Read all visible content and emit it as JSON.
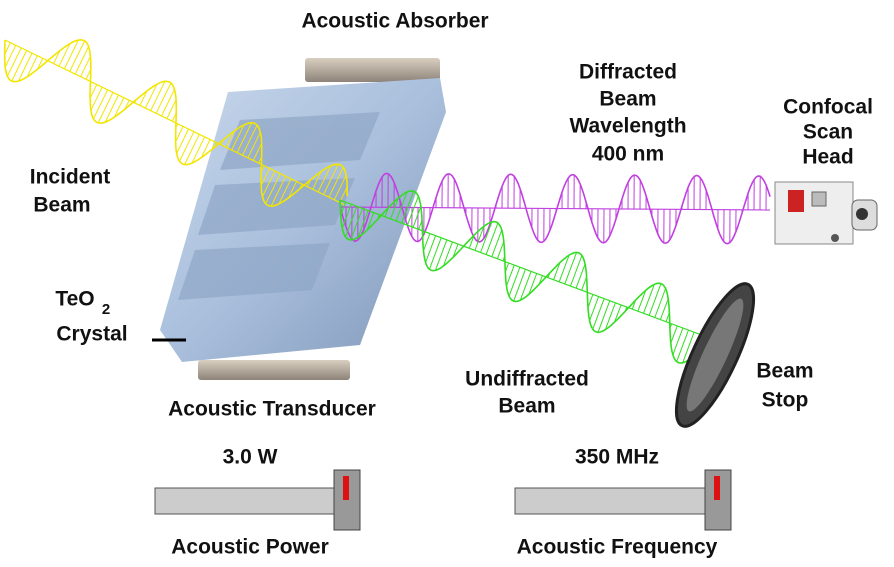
{
  "title": "Acoustic Absorber",
  "diffracted_beam": {
    "lines": [
      "Diffracted",
      "Beam",
      "Wavelength",
      "400 nm"
    ]
  },
  "scan_head": {
    "lines": [
      "Confocal",
      "Scan",
      "Head"
    ]
  },
  "incident_beam": {
    "lines": [
      "Incident",
      "Beam"
    ]
  },
  "crystal": {
    "formula": "TeO",
    "subscript": "2",
    "name": "Crystal"
  },
  "undiffracted_beam": {
    "lines": [
      "Undiffracted",
      "Beam"
    ]
  },
  "beam_stop": {
    "lines": [
      "Beam",
      "Stop"
    ]
  },
  "transducer": "Acoustic Transducer",
  "controls": [
    {
      "readout": "3.0 W",
      "label": "Acoustic Power"
    },
    {
      "readout": "350 MHz",
      "label": "Acoustic Frequency"
    }
  ]
}
